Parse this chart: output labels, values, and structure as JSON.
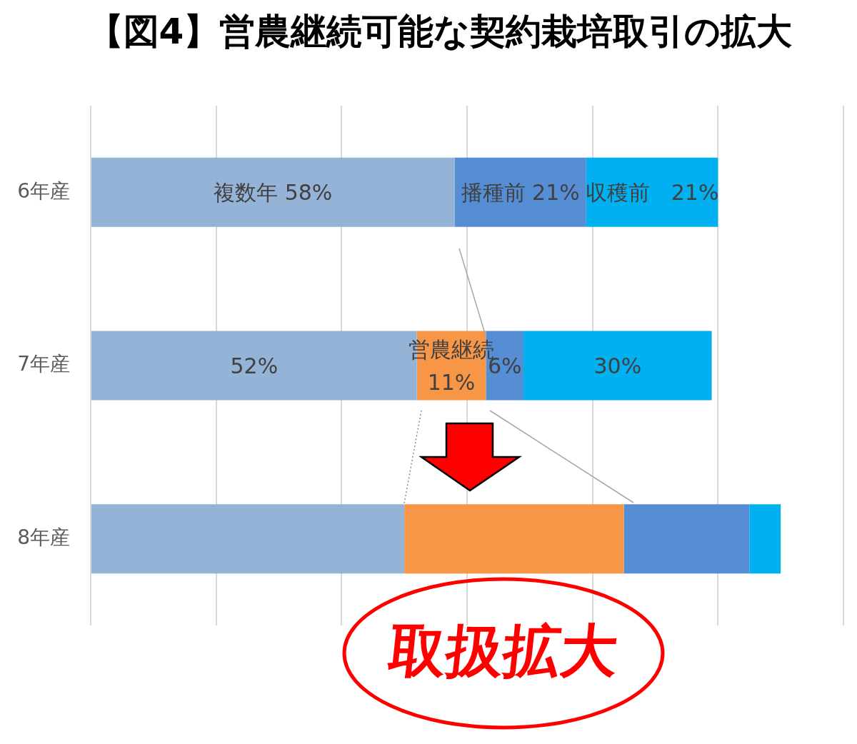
{
  "chart_data": {
    "type": "bar",
    "orientation": "horizontal",
    "stacked": true,
    "title": "【図4】営農継続可能な契約栽培取引の拡大",
    "categories": [
      "6年産",
      "7年産",
      "8年産"
    ],
    "series": [
      {
        "color": "#95b3d7",
        "values": [
          58,
          52,
          50
        ],
        "value_labels": [
          "複数年 58%",
          "52%",
          null
        ]
      },
      {
        "color": "#f79646",
        "values": [
          null,
          11,
          35
        ],
        "value_labels": [
          null,
          "営農継続\n11%",
          null
        ]
      },
      {
        "color": "#558ed5",
        "values": [
          21,
          6,
          20
        ],
        "value_labels": [
          "播種前 21%",
          "6%",
          null
        ]
      },
      {
        "color": "#00b0f0",
        "values": [
          21,
          30,
          5
        ],
        "value_labels": [
          "収穫前　21%",
          "30%",
          null
        ]
      }
    ],
    "xlim": [
      0,
      120
    ],
    "xticks": [
      {
        "value": 0,
        "label": null
      },
      {
        "value": 20,
        "label": null
      },
      {
        "value": 40,
        "label": null
      },
      {
        "value": 60,
        "label": null
      },
      {
        "value": 80,
        "label": null
      },
      {
        "value": 100,
        "label": null
      },
      {
        "value": 120,
        "label": null
      }
    ],
    "grid": "x",
    "tick_labels": "y",
    "annotations": [
      "取扱拡大"
    ]
  }
}
